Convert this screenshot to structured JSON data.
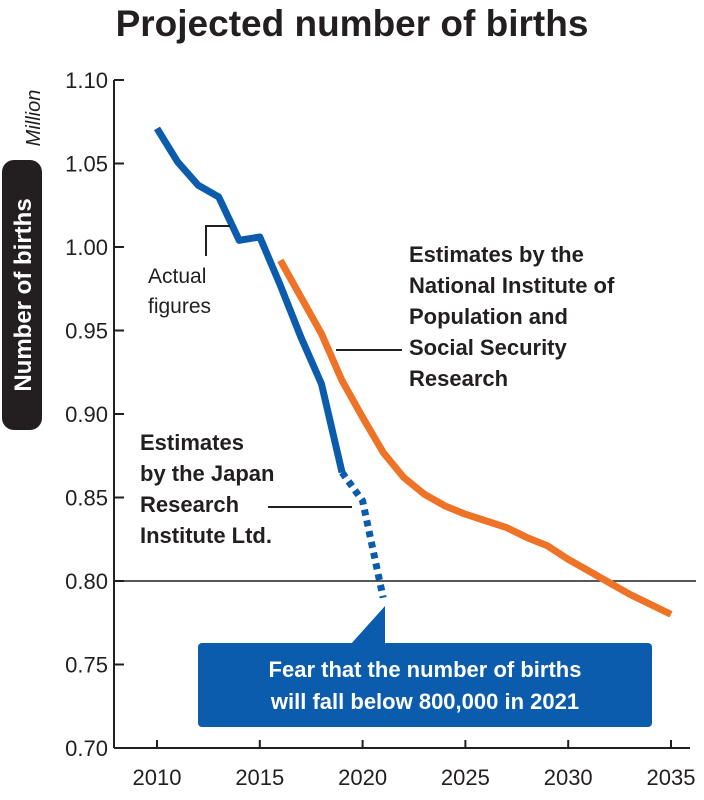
{
  "chart_data": {
    "type": "line",
    "title": "Projected number of births",
    "ylabel": "Number of births",
    "yunit": "Million",
    "xlabel": "",
    "xlim": [
      2010,
      2035
    ],
    "ylim": [
      0.7,
      1.1
    ],
    "xticks": [
      "2010",
      "2015",
      "2020",
      "2025",
      "2030",
      "2035"
    ],
    "yticks": [
      "0.70",
      "0.75",
      "0.80",
      "0.85",
      "0.90",
      "0.95",
      "1.00",
      "1.05",
      "1.10"
    ],
    "reference_line": 0.8,
    "series": [
      {
        "name": "Actual figures",
        "color": "#0b5cad",
        "style": "solid",
        "x": [
          2010,
          2011,
          2012,
          2013,
          2014,
          2015,
          2016,
          2017,
          2018,
          2019
        ],
        "y": [
          1.071,
          1.051,
          1.037,
          1.03,
          1.004,
          1.006,
          0.977,
          0.946,
          0.918,
          0.865
        ]
      },
      {
        "name": "Estimates by the Japan Research Institute Ltd.",
        "color": "#0b5cad",
        "style": "dotted",
        "x": [
          2019,
          2020,
          2021
        ],
        "y": [
          0.865,
          0.848,
          0.79
        ]
      },
      {
        "name": "Estimates by the National Institute of Population and Social Security Research",
        "color": "#ee7326",
        "style": "solid",
        "x": [
          2016,
          2017,
          2018,
          2019,
          2020,
          2021,
          2022,
          2023,
          2024,
          2025,
          2026,
          2027,
          2028,
          2029,
          2030,
          2031,
          2032,
          2033,
          2034,
          2035
        ],
        "y": [
          0.992,
          0.97,
          0.948,
          0.92,
          0.898,
          0.877,
          0.862,
          0.852,
          0.845,
          0.84,
          0.836,
          0.832,
          0.826,
          0.821,
          0.813,
          0.806,
          0.799,
          0.792,
          0.786,
          0.78
        ]
      }
    ],
    "annotations": {
      "actual": [
        "Actual",
        "figures"
      ],
      "nipssr": [
        "Estimates by the",
        "National Institute of",
        "Population and",
        "Social Security",
        "Research"
      ],
      "jri": [
        "Estimates",
        "by the Japan",
        "Research",
        "Institute Ltd."
      ],
      "callout": [
        "Fear that the number of births",
        "will fall below 800,000 in 2021"
      ]
    }
  }
}
